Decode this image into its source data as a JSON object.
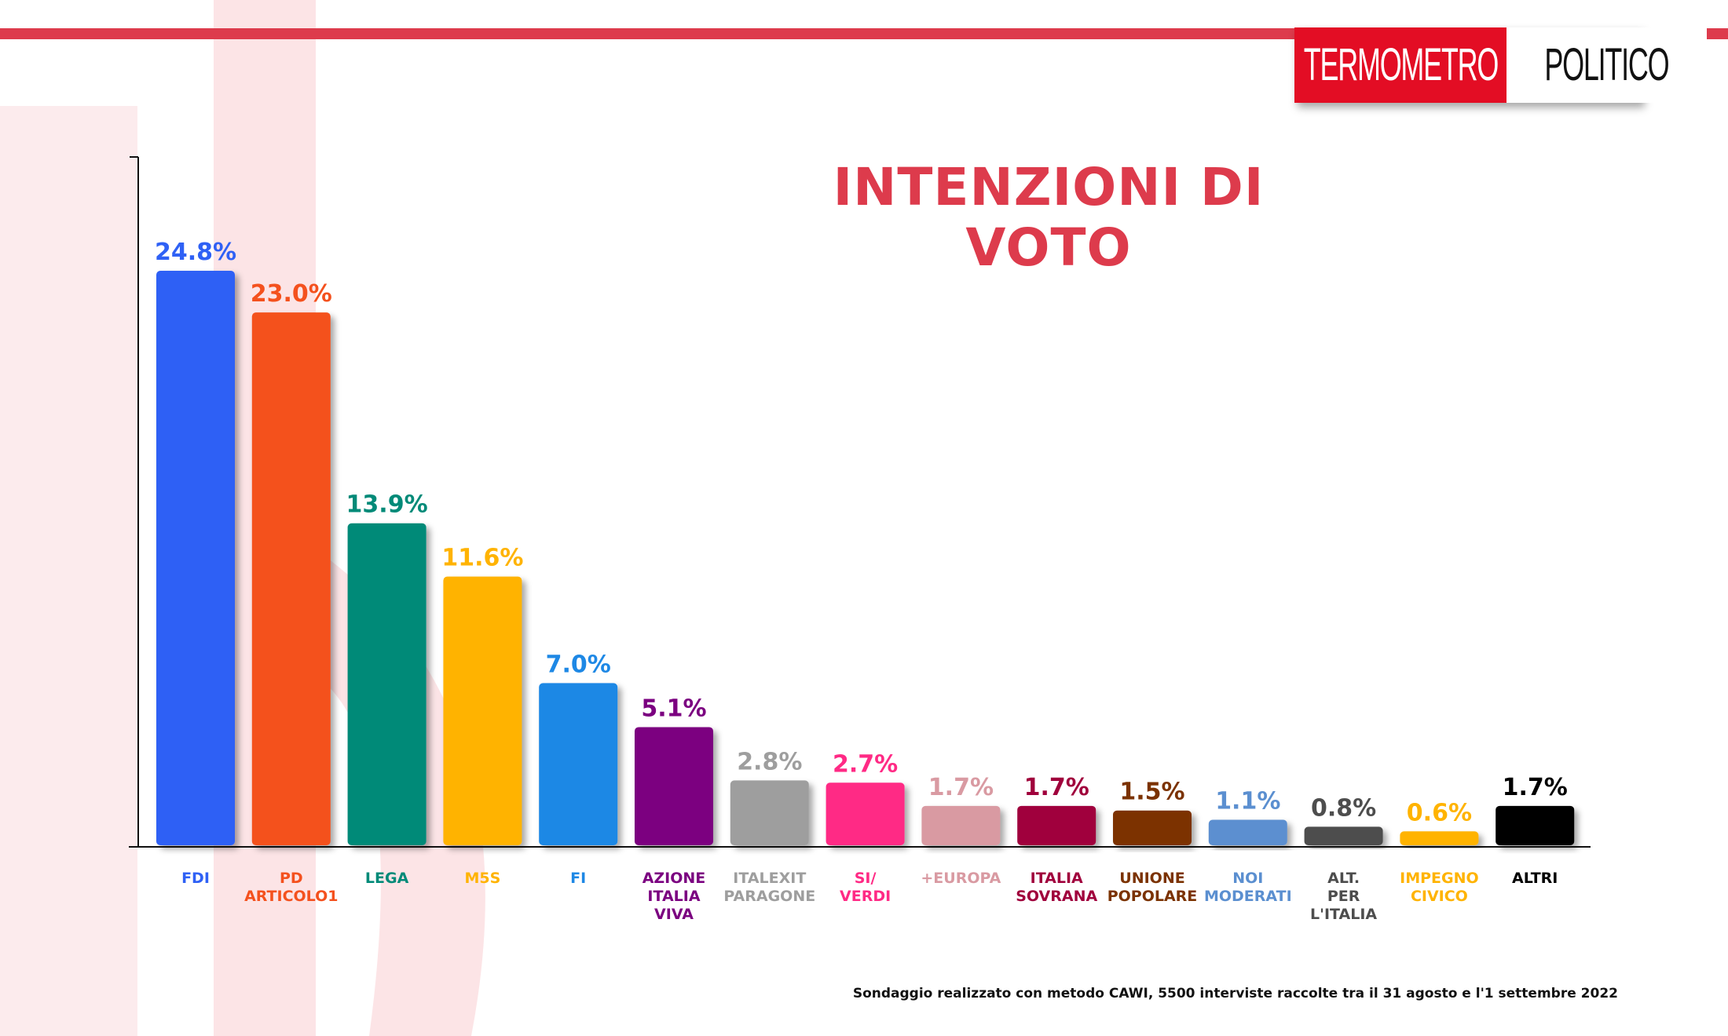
{
  "header": {
    "logo_left": "TERMOMETRO",
    "logo_right": "POLITICO",
    "accent_color": "#dd3b4c"
  },
  "chart_data": {
    "type": "bar",
    "title": "INTENZIONI DI VOTO",
    "categories": [
      "FDI",
      "PD ARTICOLO1",
      "LEGA",
      "M5S",
      "FI",
      "AZIONE ITALIA VIVA",
      "ITALEXIT PARAGONE",
      "SI/ VERDI",
      "+EUROPA",
      "ITALIA SOVRANA",
      "UNIONE POPOLARE",
      "NOI MODERATI",
      "ALT. PER L'ITALIA",
      "IMPEGNO CIVICO",
      "ALTRI"
    ],
    "category_lines": [
      [
        "FDI"
      ],
      [
        "PD",
        "ARTICOLO1"
      ],
      [
        "LEGA"
      ],
      [
        "M5S"
      ],
      [
        "FI"
      ],
      [
        "AZIONE",
        "ITALIA",
        "VIVA"
      ],
      [
        "ITALEXIT",
        "PARAGONE"
      ],
      [
        "SI/",
        "VERDI"
      ],
      [
        "+EUROPA"
      ],
      [
        "ITALIA",
        "SOVRANA"
      ],
      [
        "UNIONE",
        "POPOLARE"
      ],
      [
        "NOI",
        "MODERATI"
      ],
      [
        "ALT.",
        "PER",
        "L'ITALIA"
      ],
      [
        "IMPEGNO",
        "CIVICO"
      ],
      [
        "ALTRI"
      ]
    ],
    "values": [
      24.8,
      23.0,
      13.9,
      11.6,
      7.0,
      5.1,
      2.8,
      2.7,
      1.7,
      1.7,
      1.5,
      1.1,
      0.8,
      0.6,
      1.7
    ],
    "value_labels": [
      "24.8%",
      "23.0%",
      "13.9%",
      "11.6%",
      "7.0%",
      "5.1%",
      "2.8%",
      "2.7%",
      "1.7%",
      "1.7%",
      "1.5%",
      "1.1%",
      "0.8%",
      "0.6%",
      "1.7%"
    ],
    "colors": [
      "#2f61f5",
      "#f4511e",
      "#008a78",
      "#ffb300",
      "#1e88e5",
      "#7b0080",
      "#9e9e9e",
      "#ff2a85",
      "#d99aa2",
      "#a0003c",
      "#7b3200",
      "#5b8fd0",
      "#4d4d4d",
      "#ffb300",
      "#000000"
    ],
    "label_colors": [
      "#2f61f5",
      "#f4511e",
      "#008a78",
      "#ffb300",
      "#1e88e5",
      "#7b0080",
      "#9e9e9e",
      "#ff2a85",
      "#d99aa2",
      "#a0003c",
      "#7b3200",
      "#5b8fd0",
      "#4d4d4d",
      "#ffb300",
      "#000000"
    ],
    "ylim": [
      0,
      24.8
    ],
    "grid": false,
    "legend": "none"
  },
  "footer": {
    "source": "Sondaggio realizzato con metodo CAWI, 5500 interviste raccolte tra il 31 agosto e l'1 settembre 2022"
  }
}
